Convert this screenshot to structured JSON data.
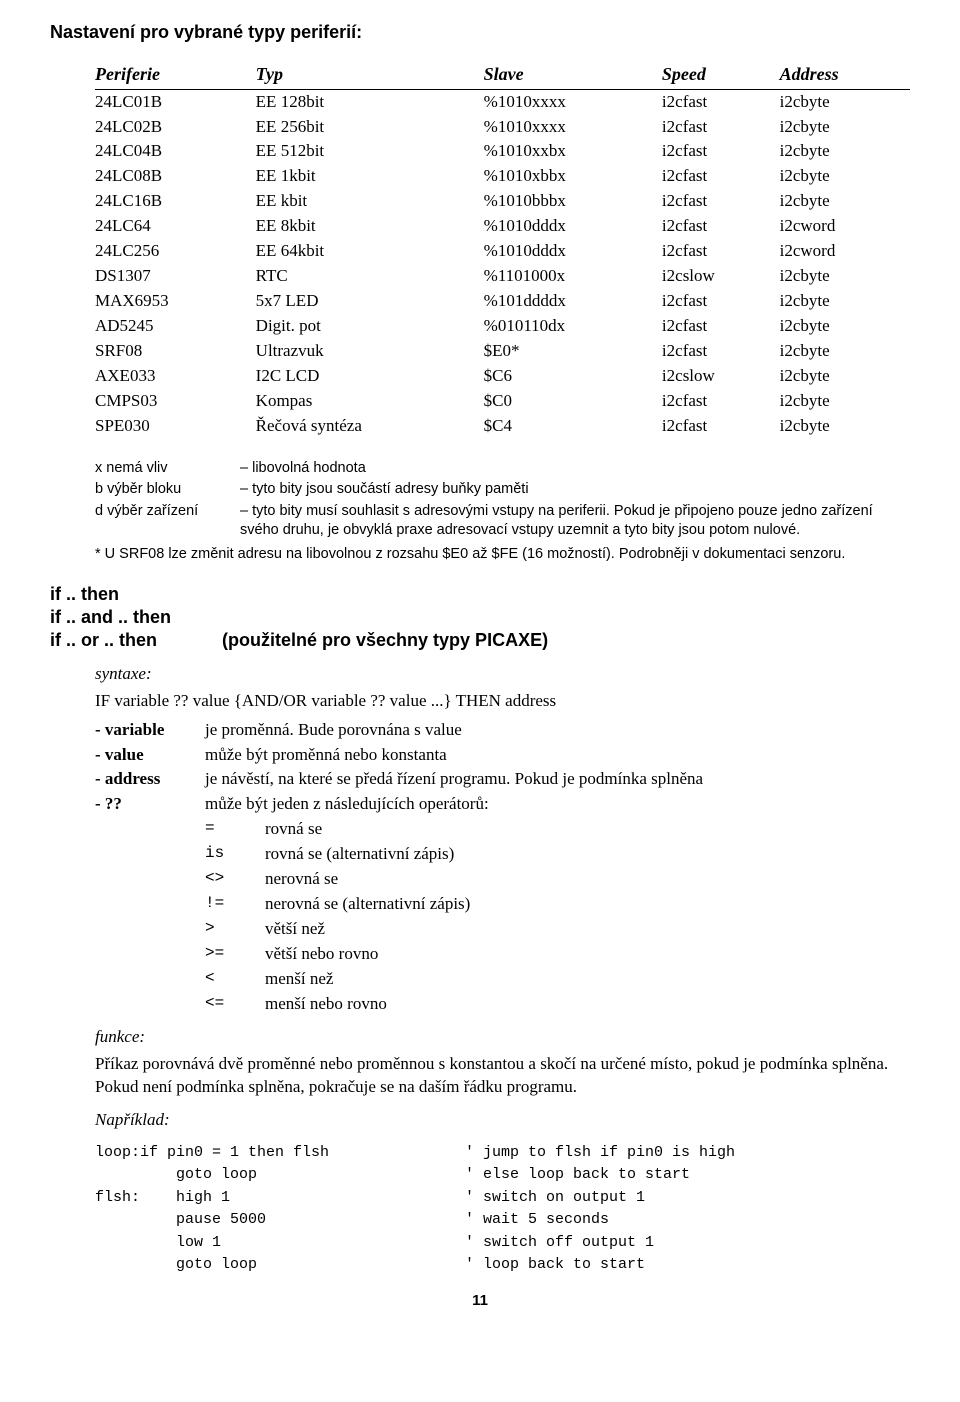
{
  "title": "Nastavení pro vybrané typy periferií:",
  "table": {
    "headers": [
      "Periferie",
      "Typ",
      "Slave",
      "Speed",
      "Address"
    ],
    "rows": [
      [
        "24LC01B",
        "EE 128bit",
        "%1010xxxx",
        "i2cfast",
        "i2cbyte"
      ],
      [
        "24LC02B",
        "EE 256bit",
        "%1010xxxx",
        "i2cfast",
        "i2cbyte"
      ],
      [
        "24LC04B",
        "EE 512bit",
        "%1010xxbx",
        "i2cfast",
        "i2cbyte"
      ],
      [
        "24LC08B",
        "EE 1kbit",
        "%1010xbbx",
        "i2cfast",
        "i2cbyte"
      ],
      [
        "24LC16B",
        "EE kbit",
        "%1010bbbx",
        "i2cfast",
        "i2cbyte"
      ],
      [
        "24LC64",
        "EE 8kbit",
        "%1010dddx",
        "i2cfast",
        "i2cword"
      ],
      [
        "24LC256",
        "EE 64kbit",
        "%1010dddx",
        "i2cfast",
        "i2cword"
      ],
      [
        "DS1307",
        "RTC",
        "%1101000x",
        "i2cslow",
        "i2cbyte"
      ],
      [
        "MAX6953",
        "5x7 LED",
        "%101ddddx",
        "i2cfast",
        "i2cbyte"
      ],
      [
        "AD5245",
        "Digit. pot",
        "%010110dx",
        "i2cfast",
        "i2cbyte"
      ],
      [
        "SRF08",
        "Ultrazvuk",
        "$E0*",
        "i2cfast",
        "i2cbyte"
      ],
      [
        "AXE033",
        "I2C LCD",
        "$C6",
        "i2cslow",
        "i2cbyte"
      ],
      [
        "CMPS03",
        "Kompas",
        "$C0",
        "i2cfast",
        "i2cbyte"
      ],
      [
        "SPE030",
        "Řečová syntéza",
        "$C4",
        "i2cfast",
        "i2cbyte"
      ]
    ]
  },
  "notes": {
    "items": [
      {
        "k": "x nemá vliv",
        "v": "– libovolná hodnota"
      },
      {
        "k": "b výběr bloku",
        "v": "– tyto bity jsou součástí adresy buňky paměti"
      },
      {
        "k": "d výběr zařízení",
        "v": "– tyto bity musí souhlasit s adresovými vstupy na periferii. Pokud je připojeno pouze jedno zařízení svého druhu, je obvyklá praxe adresovací vstupy uzemnit a tyto bity jsou potom nulové."
      }
    ],
    "star": "* U SRF08 lze změnit adresu na libovolnou z rozsahu $E0 až $FE (16 možností). Podrobněji v dokumentaci senzoru."
  },
  "ifheads": {
    "l1": "if .. then",
    "l2": "if .. and .. then",
    "l3": "if .. or .. then",
    "paren": "(použitelné pro všechny typy PICAXE)"
  },
  "syntax": {
    "label": "syntaxe:",
    "line": "IF variable ?? value {AND/OR variable ?? value ...} THEN address",
    "defs": [
      {
        "k": "- variable",
        "v": "je proměnná. Bude porovnána s value"
      },
      {
        "k": "- value",
        "v": "může být proměnná nebo konstanta"
      },
      {
        "k": "- address",
        "v": "je návěstí, na které se předá řízení programu. Pokud je podmínka splněna"
      },
      {
        "k": "- ??",
        "v": "může být jeden z následujících operátorů:"
      }
    ],
    "ops": [
      {
        "k": "=",
        "v": "rovná se"
      },
      {
        "k": "is",
        "v": "rovná se (alternativní zápis)"
      },
      {
        "k": "<>",
        "v": "nerovná se"
      },
      {
        "k": "!=",
        "v": "nerovná se (alternativní zápis)"
      },
      {
        "k": ">",
        "v": "větší než"
      },
      {
        "k": ">=",
        "v": "větší nebo rovno"
      },
      {
        "k": "<",
        "v": "menší než"
      },
      {
        "k": "<=",
        "v": "menší nebo rovno"
      }
    ]
  },
  "funkce": {
    "label": "funkce:",
    "text": "Příkaz porovnává dvě proměnné nebo proměnnou s konstantou a skočí na určené místo, pokud je podmínka splněna. Pokud není podmínka splněna, pokračuje se na daším řádku programu."
  },
  "example": {
    "label": "Například:",
    "lines": [
      {
        "l": "loop:if pin0 = 1 then flsh",
        "r": "' jump to flsh if pin0 is high"
      },
      {
        "l": "         goto loop",
        "r": "' else loop back to start"
      },
      {
        "l": "",
        "r": ""
      },
      {
        "l": "flsh:    high 1",
        "r": "' switch on output 1"
      },
      {
        "l": "         pause 5000",
        "r": "' wait 5 seconds"
      },
      {
        "l": "         low 1",
        "r": "' switch off output 1"
      },
      {
        "l": "         goto loop",
        "r": "' loop back to start"
      }
    ]
  },
  "pagenum": "11"
}
